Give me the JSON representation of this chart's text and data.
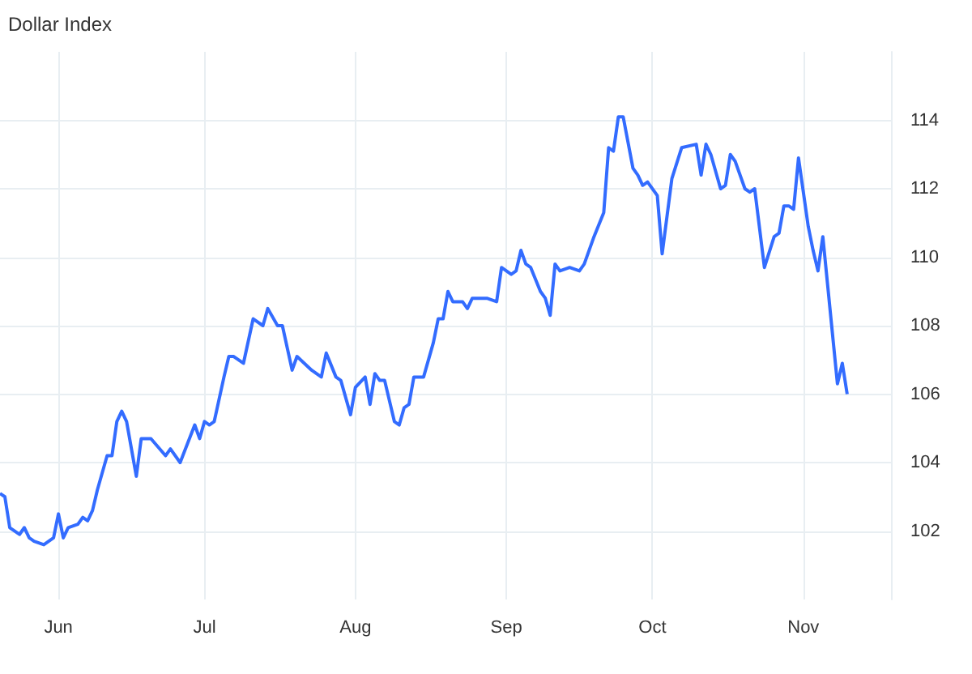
{
  "chart_data": {
    "type": "line",
    "title": "Dollar Index",
    "x": [
      "--05-20",
      "--05-21",
      "--05-22",
      "--05-24",
      "--05-25",
      "--05-26",
      "--05-27",
      "--05-29",
      "--05-31",
      "--06-01",
      "--06-02",
      "--06-03",
      "--06-05",
      "--06-06",
      "--06-07",
      "--06-08",
      "--06-09",
      "--06-11",
      "--06-12",
      "--06-13",
      "--06-14",
      "--06-15",
      "--06-17",
      "--06-18",
      "--06-19",
      "--06-20",
      "--06-23",
      "--06-24",
      "--06-26",
      "--06-29",
      "--06-30",
      "--07-01",
      "--07-02",
      "--07-03",
      "--07-05",
      "--07-06",
      "--07-07",
      "--07-09",
      "--07-11",
      "--07-13",
      "--07-14",
      "--07-16",
      "--07-17",
      "--07-19",
      "--07-20",
      "--07-23",
      "--07-24",
      "--07-25",
      "--07-26",
      "--07-28",
      "--07-29",
      "--07-31",
      "--08-01",
      "--08-03",
      "--08-04",
      "--08-05",
      "--08-06",
      "--08-07",
      "--08-09",
      "--08-10",
      "--08-11",
      "--08-12",
      "--08-13",
      "--08-15",
      "--08-17",
      "--08-18",
      "--08-19",
      "--08-20",
      "--08-21",
      "--08-23",
      "--08-24",
      "--08-25",
      "--08-27",
      "--08-28",
      "--08-30",
      "--08-31",
      "--09-02",
      "--09-03",
      "--09-04",
      "--09-05",
      "--09-06",
      "--09-08",
      "--09-09",
      "--09-10",
      "--09-11",
      "--09-12",
      "--09-14",
      "--09-16",
      "--09-17",
      "--09-19",
      "--09-21",
      "--09-22",
      "--09-23",
      "--09-24",
      "--09-25",
      "--09-27",
      "--09-28",
      "--09-29",
      "--09-30",
      "--10-02",
      "--10-03",
      "--10-04",
      "--10-05",
      "--10-07",
      "--10-10",
      "--10-11",
      "--10-12",
      "--10-13",
      "--10-15",
      "--10-16",
      "--10-17",
      "--10-18",
      "--10-20",
      "--10-21",
      "--10-22",
      "--10-24",
      "--10-26",
      "--10-27",
      "--10-28",
      "--10-29",
      "--10-30",
      "--10-31",
      "--11-02",
      "--11-03",
      "--11-04",
      "--11-05",
      "--11-08",
      "--11-09",
      "--11-10"
    ],
    "series": [
      {
        "color": "#336cff",
        "values": [
          103.1,
          103.0,
          102.1,
          101.9,
          102.1,
          101.8,
          101.7,
          101.6,
          101.8,
          102.5,
          101.8,
          102.1,
          102.2,
          102.4,
          102.3,
          102.6,
          103.2,
          104.2,
          104.2,
          105.2,
          105.5,
          105.2,
          103.6,
          104.7,
          104.7,
          104.7,
          104.2,
          104.4,
          104.0,
          105.1,
          104.7,
          105.2,
          105.1,
          105.2,
          106.5,
          107.1,
          107.1,
          106.9,
          108.2,
          108.0,
          108.5,
          108.0,
          108.0,
          106.7,
          107.1,
          106.7,
          106.6,
          106.5,
          107.2,
          106.5,
          106.4,
          105.4,
          106.2,
          106.5,
          105.7,
          106.6,
          106.4,
          106.4,
          105.2,
          105.1,
          105.6,
          105.7,
          106.5,
          106.5,
          107.5,
          108.2,
          108.2,
          109.0,
          108.7,
          108.7,
          108.5,
          108.8,
          108.8,
          108.8,
          108.7,
          109.7,
          109.5,
          109.6,
          110.2,
          109.8,
          109.7,
          109.0,
          108.8,
          108.3,
          109.8,
          109.6,
          109.7,
          109.6,
          109.8,
          110.6,
          111.3,
          113.2,
          113.1,
          114.1,
          114.1,
          112.6,
          112.4,
          112.1,
          112.2,
          111.8,
          110.1,
          111.2,
          112.3,
          113.2,
          113.3,
          112.4,
          113.3,
          113.0,
          112.0,
          112.1,
          113.0,
          112.8,
          112.0,
          111.9,
          112.0,
          109.7,
          110.6,
          110.7,
          111.5,
          111.5,
          111.4,
          112.9,
          110.9,
          110.2,
          109.6,
          110.6,
          106.3,
          106.9,
          106.0
        ]
      }
    ],
    "xlim": [
      "--05-20",
      "--11-19"
    ],
    "xticks": [
      {
        "value": "--06-01",
        "label": "Jun"
      },
      {
        "value": "--07-01",
        "label": "Jul"
      },
      {
        "value": "--08-01",
        "label": "Aug"
      },
      {
        "value": "--09-01",
        "label": "Sep"
      },
      {
        "value": "--10-01",
        "label": "Oct"
      },
      {
        "value": "--11-01",
        "label": "Nov"
      }
    ],
    "ylim": [
      100,
      116
    ],
    "yticks": [
      102,
      104,
      106,
      108,
      110,
      112,
      114
    ],
    "grid": true,
    "marker": "none",
    "line_style": "solid"
  }
}
